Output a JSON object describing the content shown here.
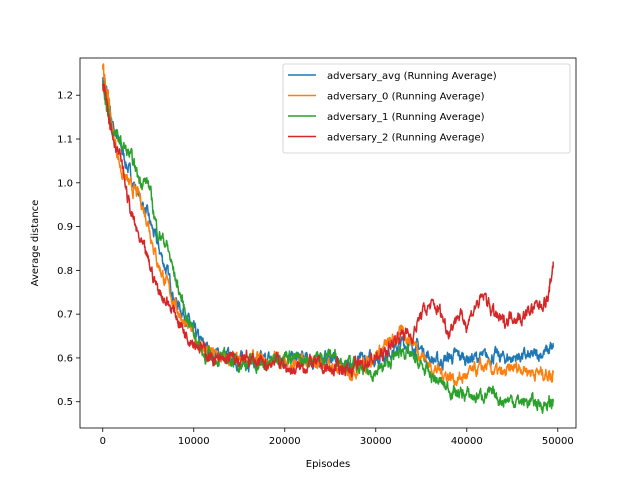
{
  "chart_data": {
    "type": "line",
    "title": "",
    "xlabel": "Episodes",
    "ylabel": "Average distance",
    "xlim": [
      -2500,
      52000
    ],
    "ylim": [
      0.44,
      1.285
    ],
    "xticks": [
      0,
      10000,
      20000,
      30000,
      40000,
      50000
    ],
    "xtick_labels": [
      "0",
      "10000",
      "20000",
      "30000",
      "40000",
      "50000"
    ],
    "yticks": [
      0.5,
      0.6,
      0.7,
      0.8,
      0.9,
      1.0,
      1.1,
      1.2
    ],
    "ytick_labels": [
      "0.5",
      "0.6",
      "0.7",
      "0.8",
      "0.9",
      "1.0",
      "1.1",
      "1.2"
    ],
    "grid": false,
    "legend_position": "top-right",
    "series": [
      {
        "name": "adversary_avg (Running Average)",
        "color": "#1f77b4",
        "x": [
          0,
          500,
          1000,
          2000,
          3000,
          4000,
          5000,
          6000,
          7000,
          8000,
          9000,
          10000,
          11000,
          12000,
          13000,
          14000,
          15000,
          16000,
          17000,
          18000,
          19000,
          20000,
          21000,
          22000,
          23000,
          24000,
          25000,
          26000,
          27000,
          28000,
          29000,
          30000,
          31000,
          32000,
          33000,
          34000,
          35000,
          36000,
          37000,
          38000,
          39000,
          40000,
          41000,
          42000,
          43000,
          44000,
          45000,
          46000,
          47000,
          48000,
          49000,
          49500
        ],
        "y": [
          1.24,
          1.2,
          1.14,
          1.08,
          1.02,
          0.97,
          0.92,
          0.86,
          0.8,
          0.73,
          0.7,
          0.66,
          0.63,
          0.615,
          0.605,
          0.6,
          0.595,
          0.595,
          0.59,
          0.595,
          0.6,
          0.6,
          0.595,
          0.6,
          0.59,
          0.595,
          0.6,
          0.59,
          0.58,
          0.59,
          0.595,
          0.6,
          0.61,
          0.62,
          0.635,
          0.63,
          0.62,
          0.6,
          0.59,
          0.6,
          0.605,
          0.6,
          0.6,
          0.6,
          0.605,
          0.6,
          0.6,
          0.605,
          0.6,
          0.61,
          0.615,
          0.625
        ]
      },
      {
        "name": "adversary_0 (Running Average)",
        "color": "#ff7f0e",
        "x": [
          0,
          500,
          1000,
          2000,
          3000,
          4000,
          5000,
          6000,
          7000,
          8000,
          9000,
          10000,
          11000,
          12000,
          13000,
          14000,
          15000,
          16000,
          17000,
          18000,
          19000,
          20000,
          21000,
          22000,
          23000,
          24000,
          25000,
          26000,
          27000,
          28000,
          29000,
          30000,
          31000,
          32000,
          33000,
          34000,
          35000,
          36000,
          37000,
          38000,
          39000,
          40000,
          41000,
          42000,
          43000,
          44000,
          45000,
          46000,
          47000,
          48000,
          49000,
          49500
        ],
        "y": [
          1.26,
          1.21,
          1.13,
          1.03,
          0.99,
          0.97,
          0.91,
          0.82,
          0.77,
          0.72,
          0.68,
          0.65,
          0.62,
          0.61,
          0.6,
          0.595,
          0.59,
          0.6,
          0.595,
          0.59,
          0.6,
          0.59,
          0.585,
          0.59,
          0.585,
          0.59,
          0.58,
          0.575,
          0.57,
          0.575,
          0.59,
          0.61,
          0.625,
          0.64,
          0.66,
          0.64,
          0.61,
          0.58,
          0.57,
          0.56,
          0.55,
          0.56,
          0.57,
          0.58,
          0.57,
          0.56,
          0.575,
          0.58,
          0.57,
          0.565,
          0.565,
          0.565
        ]
      },
      {
        "name": "adversary_1 (Running Average)",
        "color": "#2ca02c",
        "x": [
          0,
          500,
          1000,
          2000,
          3000,
          4000,
          5000,
          6000,
          7000,
          8000,
          9000,
          10000,
          11000,
          12000,
          13000,
          14000,
          15000,
          16000,
          17000,
          18000,
          19000,
          20000,
          21000,
          22000,
          23000,
          24000,
          25000,
          26000,
          27000,
          28000,
          29000,
          30000,
          31000,
          32000,
          33000,
          34000,
          35000,
          36000,
          37000,
          38000,
          39000,
          40000,
          41000,
          42000,
          43000,
          44000,
          45000,
          46000,
          47000,
          48000,
          49000,
          49500
        ],
        "y": [
          1.23,
          1.17,
          1.12,
          1.09,
          1.06,
          1.01,
          1.0,
          0.89,
          0.86,
          0.78,
          0.71,
          0.66,
          0.61,
          0.6,
          0.6,
          0.595,
          0.59,
          0.59,
          0.585,
          0.58,
          0.6,
          0.61,
          0.6,
          0.59,
          0.6,
          0.6,
          0.61,
          0.6,
          0.59,
          0.575,
          0.565,
          0.57,
          0.58,
          0.6,
          0.62,
          0.6,
          0.58,
          0.56,
          0.545,
          0.53,
          0.52,
          0.515,
          0.51,
          0.52,
          0.51,
          0.505,
          0.505,
          0.5,
          0.5,
          0.495,
          0.495,
          0.5
        ]
      },
      {
        "name": "adversary_2 (Running Average)",
        "color": "#d62728",
        "x": [
          0,
          500,
          1000,
          2000,
          3000,
          4000,
          5000,
          6000,
          7000,
          8000,
          9000,
          10000,
          11000,
          12000,
          13000,
          14000,
          15000,
          16000,
          17000,
          18000,
          19000,
          20000,
          21000,
          22000,
          23000,
          24000,
          25000,
          26000,
          27000,
          28000,
          29000,
          30000,
          31000,
          32000,
          33000,
          34000,
          35000,
          36000,
          37000,
          38000,
          39000,
          40000,
          41000,
          42000,
          43000,
          44000,
          45000,
          46000,
          47000,
          48000,
          49000,
          49500
        ],
        "y": [
          1.22,
          1.18,
          1.12,
          1.05,
          0.94,
          0.87,
          0.82,
          0.76,
          0.73,
          0.7,
          0.66,
          0.64,
          0.62,
          0.6,
          0.59,
          0.6,
          0.59,
          0.6,
          0.59,
          0.58,
          0.6,
          0.58,
          0.57,
          0.58,
          0.59,
          0.58,
          0.57,
          0.58,
          0.575,
          0.58,
          0.59,
          0.6,
          0.61,
          0.64,
          0.66,
          0.65,
          0.7,
          0.72,
          0.71,
          0.66,
          0.7,
          0.68,
          0.72,
          0.74,
          0.7,
          0.68,
          0.7,
          0.69,
          0.71,
          0.72,
          0.74,
          0.82
        ]
      }
    ]
  }
}
